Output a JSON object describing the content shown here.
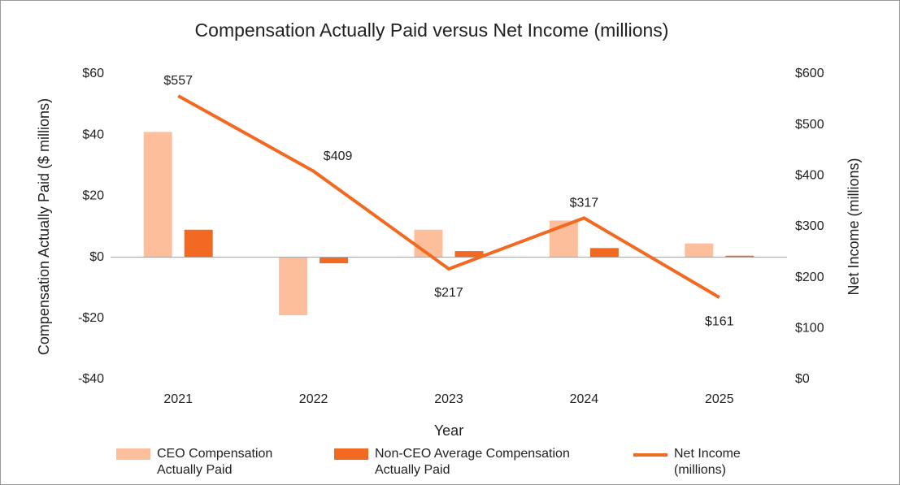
{
  "chart_data": {
    "type": "bar",
    "title": "Compensation Actually Paid versus Net Income (millions)",
    "x_label": "Year",
    "y_label": "Compensation Actually Paid ($ millions)",
    "y2_label": "Net Income (millions)",
    "categories": [
      "2021",
      "2022",
      "2023",
      "2024",
      "2025"
    ],
    "ylim": [
      -40,
      60
    ],
    "yticks": [
      {
        "value": 60,
        "label": "$60"
      },
      {
        "value": 40,
        "label": "$40"
      },
      {
        "value": 20,
        "label": "$20"
      },
      {
        "value": 0,
        "label": "$0"
      },
      {
        "value": -20,
        "label": "-$20"
      },
      {
        "value": -40,
        "label": "-$40"
      }
    ],
    "y2lim": [
      0,
      600
    ],
    "y2ticks": [
      {
        "value": 600,
        "label": "$600"
      },
      {
        "value": 500,
        "label": "$500"
      },
      {
        "value": 400,
        "label": "$400"
      },
      {
        "value": 300,
        "label": "$300"
      },
      {
        "value": 200,
        "label": "$200"
      },
      {
        "value": 100,
        "label": "$100"
      },
      {
        "value": 0,
        "label": "$0"
      }
    ],
    "legend": "bottom",
    "series": [
      {
        "name": "CEO Compensation Actually Paid",
        "type": "bar",
        "color": "#fdbf9b",
        "values": [
          41,
          -19,
          9,
          12,
          4.5
        ]
      },
      {
        "name": "Non-CEO Average Compensation Actually Paid",
        "type": "bar",
        "color": "#f26a21",
        "values": [
          9,
          -2,
          2,
          3,
          0.5
        ]
      },
      {
        "name": "Net Income (millions)",
        "type": "line",
        "axis": "y2",
        "color": "#f26a21",
        "values": [
          557,
          409,
          217,
          317,
          161
        ],
        "value_labels": [
          "$557",
          "$409",
          "$217",
          "$317",
          "$161"
        ]
      }
    ]
  }
}
